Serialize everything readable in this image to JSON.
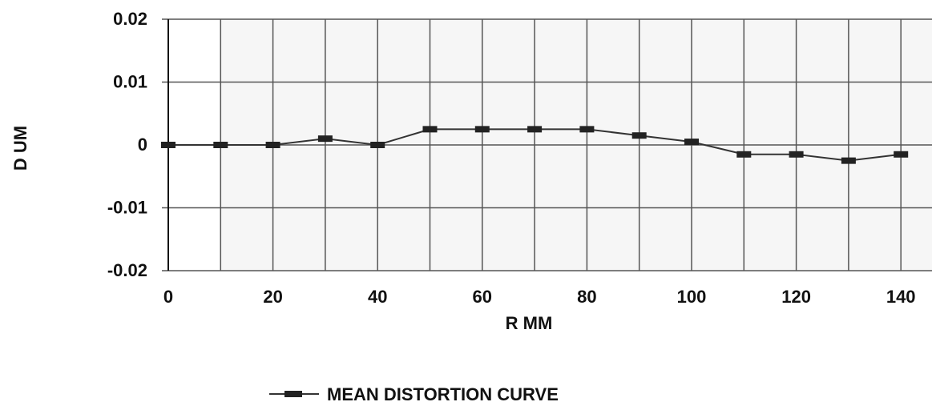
{
  "chart_data": {
    "type": "line",
    "xlabel": "R MM",
    "ylabel": "D UM",
    "x_ticks": [
      "0",
      "20",
      "40",
      "60",
      "80",
      "100",
      "120",
      "140"
    ],
    "y_ticks": [
      "0.02",
      "0.01",
      "0",
      "-0.01",
      "-0.02"
    ],
    "xlim": [
      0,
      150
    ],
    "ylim": [
      -0.02,
      0.02
    ],
    "grid": true,
    "legend_position": "bottom",
    "series": [
      {
        "name": "MEAN DISTORTION CURVE",
        "x": [
          0,
          10,
          20,
          30,
          40,
          50,
          60,
          70,
          80,
          90,
          100,
          110,
          120,
          130,
          140
        ],
        "y": [
          0,
          0,
          0,
          0.001,
          0,
          0.0025,
          0.0025,
          0.0025,
          0.0025,
          0.0015,
          0.0005,
          -0.0015,
          -0.0015,
          -0.0025,
          -0.0015
        ]
      }
    ],
    "colors": {
      "line": "#333333",
      "marker": "#222222",
      "grid": "#555555",
      "plot_bg": "#f6f6f6"
    }
  }
}
